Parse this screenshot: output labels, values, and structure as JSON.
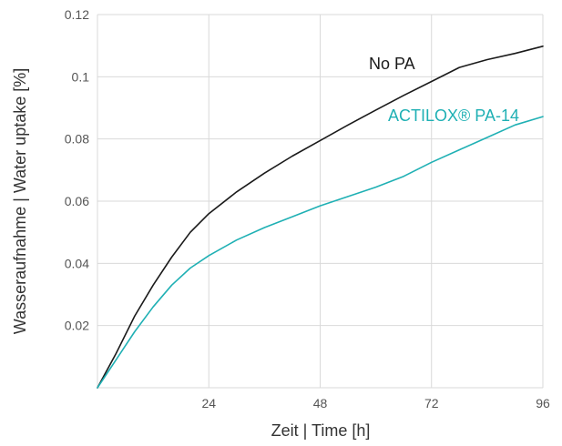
{
  "chart_data": {
    "type": "line",
    "xlabel": "Zeit  |  Time [h]",
    "ylabel": "Wasseraufnahme  |  Water uptake [%]",
    "xlim": [
      0,
      96
    ],
    "ylim": [
      0,
      0.12
    ],
    "x_ticks": [
      "24",
      "48",
      "72",
      "96"
    ],
    "y_ticks": [
      "0.02",
      "0.04",
      "0.06",
      "0.08",
      "0.1",
      "0.12"
    ],
    "grid": true,
    "series": [
      {
        "name": "No PA",
        "color": "#1a1a1a",
        "x": [
          0,
          4,
          8,
          12,
          16,
          20,
          24,
          30,
          36,
          42,
          48,
          54,
          60,
          66,
          72,
          78,
          84,
          90,
          96
        ],
        "y": [
          0,
          0.011,
          0.023,
          0.033,
          0.042,
          0.05,
          0.056,
          0.063,
          0.069,
          0.0745,
          0.0795,
          0.0845,
          0.0893,
          0.094,
          0.0985,
          0.103,
          0.1055,
          0.1075,
          0.1098
        ]
      },
      {
        "name": "ACTILOX® PA-14",
        "color": "#1fb0b4",
        "x": [
          0,
          4,
          8,
          12,
          16,
          20,
          24,
          30,
          36,
          42,
          48,
          54,
          60,
          66,
          72,
          78,
          84,
          90,
          96
        ],
        "y": [
          0,
          0.009,
          0.018,
          0.026,
          0.033,
          0.0385,
          0.0425,
          0.0475,
          0.0515,
          0.055,
          0.0585,
          0.0615,
          0.0645,
          0.068,
          0.0725,
          0.0765,
          0.0805,
          0.0845,
          0.0872
        ]
      }
    ]
  }
}
